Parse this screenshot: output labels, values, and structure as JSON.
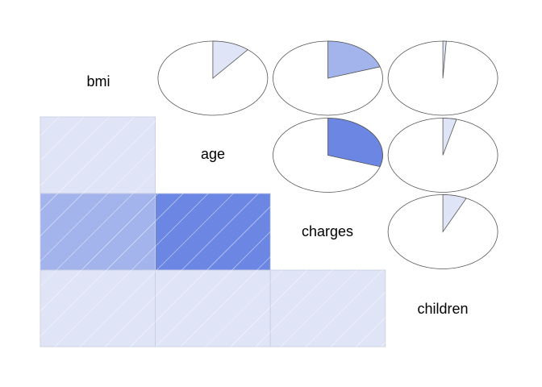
{
  "chart_data": {
    "type": "heatmap",
    "variables": [
      "bmi",
      "age",
      "charges",
      "children"
    ],
    "lower_panel": "shade",
    "upper_panel": "pie",
    "correlations": [
      {
        "row": "age",
        "col": "bmi",
        "r": 0.11
      },
      {
        "row": "charges",
        "col": "bmi",
        "r": 0.2
      },
      {
        "row": "charges",
        "col": "age",
        "r": 0.3
      },
      {
        "row": "children",
        "col": "bmi",
        "r": 0.01
      },
      {
        "row": "children",
        "col": "age",
        "r": 0.04
      },
      {
        "row": "children",
        "col": "charges",
        "r": 0.07
      }
    ],
    "colors": {
      "positive_light": "#dfe4f7",
      "positive_mid": "#a3b4ed",
      "positive_strong": "#6c87e3",
      "hatch": "#ffffff",
      "pie_outline": "#555555",
      "cell_border": "#c8cde0"
    }
  }
}
